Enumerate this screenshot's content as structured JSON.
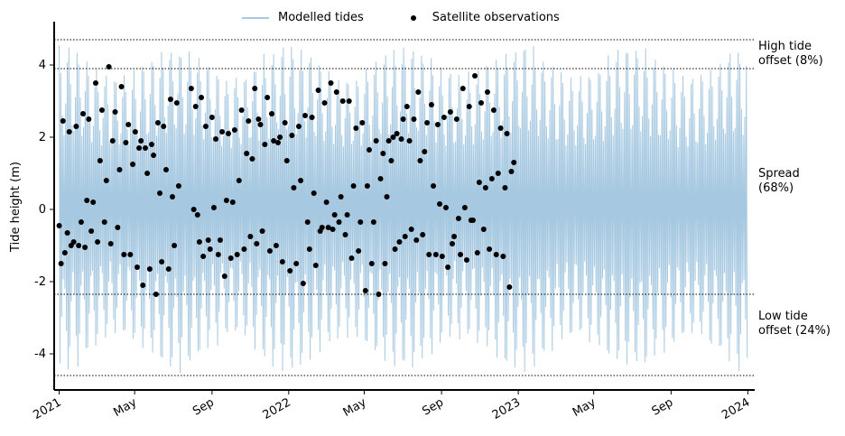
{
  "chart_data": {
    "type": "line",
    "title": "",
    "ylabel": "Tide height (m)",
    "xlabel": "",
    "ylim": [
      -5.0,
      5.2
    ],
    "xlim": [
      "2020-12-24",
      "2024-01-12"
    ],
    "yticks": [
      -4,
      -2,
      0,
      2,
      4
    ],
    "xticks": [
      {
        "date": "2021-01-01",
        "label": "2021"
      },
      {
        "date": "2021-05-01",
        "label": "May"
      },
      {
        "date": "2021-09-01",
        "label": "Sep"
      },
      {
        "date": "2022-01-01",
        "label": "2022"
      },
      {
        "date": "2022-05-01",
        "label": "May"
      },
      {
        "date": "2022-09-01",
        "label": "Sep"
      },
      {
        "date": "2023-01-01",
        "label": "2023"
      },
      {
        "date": "2023-05-01",
        "label": "May"
      },
      {
        "date": "2023-09-01",
        "label": "Sep"
      },
      {
        "date": "2024-01-01",
        "label": "2024"
      }
    ],
    "legend": {
      "position": "top-center",
      "entries": [
        "Modelled tides",
        "Satellite observations"
      ]
    },
    "series": [
      {
        "name": "Modelled tides",
        "kind": "line",
        "color": "#a6c8e0",
        "range": [
          -4.6,
          4.7
        ],
        "period_days": 14.8
      },
      {
        "name": "Satellite observations",
        "kind": "scatter",
        "color": "#000000",
        "points": [
          [
            "2021-01-01",
            -0.45
          ],
          [
            "2021-01-04",
            -1.5
          ],
          [
            "2021-01-07",
            2.45
          ],
          [
            "2021-01-10",
            -1.2
          ],
          [
            "2021-01-14",
            -0.65
          ],
          [
            "2021-01-17",
            2.15
          ],
          [
            "2021-01-20",
            -1.0
          ],
          [
            "2021-01-24",
            -0.9
          ],
          [
            "2021-01-28",
            2.3
          ],
          [
            "2021-02-01",
            -1.0
          ],
          [
            "2021-02-05",
            -0.35
          ],
          [
            "2021-02-08",
            2.65
          ],
          [
            "2021-02-11",
            -1.05
          ],
          [
            "2021-02-14",
            0.25
          ],
          [
            "2021-02-17",
            2.5
          ],
          [
            "2021-02-21",
            -0.6
          ],
          [
            "2021-02-24",
            0.2
          ],
          [
            "2021-02-28",
            3.5
          ],
          [
            "2021-03-03",
            -0.9
          ],
          [
            "2021-03-07",
            1.35
          ],
          [
            "2021-03-10",
            2.75
          ],
          [
            "2021-03-14",
            -0.35
          ],
          [
            "2021-03-17",
            0.8
          ],
          [
            "2021-03-21",
            3.95
          ],
          [
            "2021-03-24",
            -0.95
          ],
          [
            "2021-03-27",
            1.9
          ],
          [
            "2021-03-31",
            2.7
          ],
          [
            "2021-04-04",
            -0.5
          ],
          [
            "2021-04-07",
            1.1
          ],
          [
            "2021-04-10",
            3.4
          ],
          [
            "2021-04-14",
            -1.25
          ],
          [
            "2021-04-17",
            1.85
          ],
          [
            "2021-04-21",
            2.35
          ],
          [
            "2021-04-24",
            -1.25
          ],
          [
            "2021-04-28",
            1.25
          ],
          [
            "2021-05-02",
            2.15
          ],
          [
            "2021-05-05",
            -1.6
          ],
          [
            "2021-05-08",
            1.7
          ],
          [
            "2021-05-11",
            1.9
          ],
          [
            "2021-05-14",
            -2.1
          ],
          [
            "2021-05-18",
            1.7
          ],
          [
            "2021-05-21",
            1.0
          ],
          [
            "2021-05-25",
            -1.65
          ],
          [
            "2021-05-28",
            1.8
          ],
          [
            "2021-05-31",
            1.5
          ],
          [
            "2021-06-04",
            -2.35
          ],
          [
            "2021-06-07",
            2.4
          ],
          [
            "2021-06-10",
            0.45
          ],
          [
            "2021-06-13",
            -1.45
          ],
          [
            "2021-06-16",
            2.3
          ],
          [
            "2021-06-20",
            1.1
          ],
          [
            "2021-06-24",
            -1.65
          ],
          [
            "2021-06-27",
            3.05
          ],
          [
            "2021-06-30",
            0.35
          ],
          [
            "2021-07-03",
            -1.0
          ],
          [
            "2021-07-07",
            2.95
          ],
          [
            "2021-07-10",
            0.65
          ],
          [
            "2021-07-30",
            3.35
          ],
          [
            "2021-08-03",
            0.0
          ],
          [
            "2021-08-06",
            2.85
          ],
          [
            "2021-08-09",
            -0.15
          ],
          [
            "2021-08-12",
            -0.9
          ],
          [
            "2021-08-15",
            3.1
          ],
          [
            "2021-08-18",
            -1.3
          ],
          [
            "2021-08-22",
            2.3
          ],
          [
            "2021-08-26",
            -0.85
          ],
          [
            "2021-08-29",
            -1.1
          ],
          [
            "2021-09-01",
            2.55
          ],
          [
            "2021-09-04",
            0.05
          ],
          [
            "2021-09-07",
            1.95
          ],
          [
            "2021-09-11",
            -1.25
          ],
          [
            "2021-09-14",
            -0.85
          ],
          [
            "2021-09-17",
            2.15
          ],
          [
            "2021-09-21",
            -1.85
          ],
          [
            "2021-09-24",
            0.25
          ],
          [
            "2021-09-27",
            2.1
          ],
          [
            "2021-10-01",
            -1.35
          ],
          [
            "2021-10-04",
            0.2
          ],
          [
            "2021-10-07",
            2.2
          ],
          [
            "2021-10-11",
            -1.25
          ],
          [
            "2021-10-14",
            0.8
          ],
          [
            "2021-10-18",
            2.75
          ],
          [
            "2021-10-22",
            -1.1
          ],
          [
            "2021-10-26",
            1.55
          ],
          [
            "2021-10-29",
            2.45
          ],
          [
            "2021-11-01",
            -0.75
          ],
          [
            "2021-11-04",
            1.4
          ],
          [
            "2021-11-08",
            3.35
          ],
          [
            "2021-11-11",
            -0.95
          ],
          [
            "2021-11-14",
            2.5
          ],
          [
            "2021-11-17",
            2.35
          ],
          [
            "2021-11-20",
            -0.6
          ],
          [
            "2021-11-24",
            1.8
          ],
          [
            "2021-11-28",
            3.1
          ],
          [
            "2021-12-02",
            -1.15
          ],
          [
            "2021-12-05",
            2.65
          ],
          [
            "2021-12-08",
            1.9
          ],
          [
            "2021-12-12",
            -1.0
          ],
          [
            "2021-12-15",
            1.85
          ],
          [
            "2021-12-18",
            2.0
          ],
          [
            "2021-12-22",
            -1.45
          ],
          [
            "2021-12-26",
            2.4
          ],
          [
            "2021-12-29",
            1.35
          ],
          [
            "2022-01-03",
            -1.7
          ],
          [
            "2022-01-06",
            2.05
          ],
          [
            "2022-01-09",
            0.6
          ],
          [
            "2022-01-13",
            -1.5
          ],
          [
            "2022-01-17",
            2.3
          ],
          [
            "2022-01-20",
            0.8
          ],
          [
            "2022-01-24",
            -2.05
          ],
          [
            "2022-01-27",
            2.6
          ],
          [
            "2022-01-31",
            -0.35
          ],
          [
            "2022-02-03",
            -1.1
          ],
          [
            "2022-02-07",
            2.55
          ],
          [
            "2022-02-10",
            0.45
          ],
          [
            "2022-02-13",
            -1.55
          ],
          [
            "2022-02-17",
            3.3
          ],
          [
            "2022-02-20",
            -0.6
          ],
          [
            "2022-02-23",
            -0.5
          ],
          [
            "2022-02-27",
            2.95
          ],
          [
            "2022-03-02",
            0.2
          ],
          [
            "2022-03-05",
            -0.5
          ],
          [
            "2022-03-09",
            3.5
          ],
          [
            "2022-03-12",
            -0.55
          ],
          [
            "2022-03-15",
            -0.15
          ],
          [
            "2022-03-18",
            3.25
          ],
          [
            "2022-03-22",
            -0.35
          ],
          [
            "2022-03-25",
            0.35
          ],
          [
            "2022-03-28",
            3.0
          ],
          [
            "2022-04-01",
            -0.7
          ],
          [
            "2022-04-04",
            -0.15
          ],
          [
            "2022-04-07",
            3.0
          ],
          [
            "2022-04-11",
            -1.35
          ],
          [
            "2022-04-14",
            0.65
          ],
          [
            "2022-04-18",
            2.25
          ],
          [
            "2022-04-22",
            -1.15
          ],
          [
            "2022-04-25",
            -0.35
          ],
          [
            "2022-04-28",
            2.4
          ],
          [
            "2022-05-03",
            -2.25
          ],
          [
            "2022-05-06",
            0.65
          ],
          [
            "2022-05-09",
            1.65
          ],
          [
            "2022-05-13",
            -1.5
          ],
          [
            "2022-05-16",
            -0.35
          ],
          [
            "2022-05-20",
            1.9
          ],
          [
            "2022-05-24",
            -2.35
          ],
          [
            "2022-05-27",
            0.85
          ],
          [
            "2022-05-31",
            1.55
          ],
          [
            "2022-06-03",
            -1.5
          ],
          [
            "2022-06-06",
            0.35
          ],
          [
            "2022-06-09",
            1.9
          ],
          [
            "2022-06-13",
            1.35
          ],
          [
            "2022-06-16",
            2.0
          ],
          [
            "2022-06-19",
            -1.1
          ],
          [
            "2022-06-22",
            2.1
          ],
          [
            "2022-06-26",
            -0.9
          ],
          [
            "2022-06-29",
            1.95
          ],
          [
            "2022-07-02",
            2.5
          ],
          [
            "2022-07-05",
            -0.75
          ],
          [
            "2022-07-08",
            2.85
          ],
          [
            "2022-07-12",
            1.9
          ],
          [
            "2022-07-15",
            -0.55
          ],
          [
            "2022-07-19",
            2.5
          ],
          [
            "2022-07-23",
            -0.85
          ],
          [
            "2022-07-26",
            3.25
          ],
          [
            "2022-07-29",
            1.35
          ],
          [
            "2022-08-02",
            -0.7
          ],
          [
            "2022-08-05",
            1.6
          ],
          [
            "2022-08-09",
            2.4
          ],
          [
            "2022-08-12",
            -1.25
          ],
          [
            "2022-08-16",
            2.9
          ],
          [
            "2022-08-19",
            0.65
          ],
          [
            "2022-08-23",
            -1.25
          ],
          [
            "2022-08-26",
            2.35
          ],
          [
            "2022-08-29",
            0.15
          ],
          [
            "2022-09-02",
            -1.3
          ],
          [
            "2022-09-05",
            2.55
          ],
          [
            "2022-09-08",
            0.05
          ],
          [
            "2022-09-11",
            -1.6
          ],
          [
            "2022-09-15",
            2.7
          ],
          [
            "2022-09-18",
            -0.95
          ],
          [
            "2022-09-21",
            -0.75
          ],
          [
            "2022-09-25",
            2.5
          ],
          [
            "2022-09-28",
            -0.25
          ],
          [
            "2022-10-01",
            -1.25
          ],
          [
            "2022-10-05",
            3.35
          ],
          [
            "2022-10-08",
            0.05
          ],
          [
            "2022-10-11",
            -1.4
          ],
          [
            "2022-10-15",
            2.85
          ],
          [
            "2022-10-18",
            -0.3
          ],
          [
            "2022-10-21",
            -0.3
          ],
          [
            "2022-10-24",
            3.7
          ],
          [
            "2022-10-28",
            -1.2
          ],
          [
            "2022-10-31",
            0.75
          ],
          [
            "2022-11-03",
            2.95
          ],
          [
            "2022-11-07",
            -0.55
          ],
          [
            "2022-11-10",
            0.6
          ],
          [
            "2022-11-13",
            3.25
          ],
          [
            "2022-11-16",
            -1.1
          ],
          [
            "2022-11-20",
            0.85
          ],
          [
            "2022-11-23",
            2.75
          ],
          [
            "2022-11-27",
            -1.25
          ],
          [
            "2022-11-30",
            1.0
          ],
          [
            "2022-12-04",
            2.25
          ],
          [
            "2022-12-08",
            -1.3
          ],
          [
            "2022-12-11",
            0.6
          ],
          [
            "2022-12-14",
            2.1
          ],
          [
            "2022-12-18",
            -2.15
          ],
          [
            "2022-12-21",
            1.05
          ],
          [
            "2022-12-25",
            1.3
          ]
        ]
      }
    ],
    "reference_lines": [
      {
        "name": "high-tide-top",
        "y": 4.7
      },
      {
        "name": "high-tide-bottom",
        "y": 3.9
      },
      {
        "name": "low-tide-top",
        "y": -2.35
      },
      {
        "name": "low-tide-bottom",
        "y": -4.6
      }
    ],
    "annotations": [
      {
        "text": "High tide\noffset (8%)"
      },
      {
        "text": "Spread\n(68%)"
      },
      {
        "text": "Low tide\noffset (24%)"
      }
    ]
  }
}
